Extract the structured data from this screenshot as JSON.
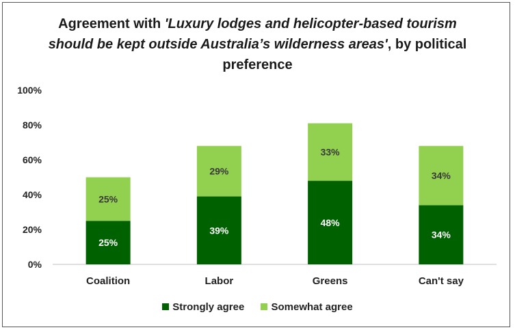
{
  "chart_data": {
    "type": "bar",
    "stacked": true,
    "title_parts": [
      {
        "text": "Agreement with ",
        "italic": false
      },
      {
        "text": "'Luxury lodges and helicopter-based tourism should be kept outside Australia’s wilderness areas'",
        "italic": true
      },
      {
        "text": ", by political preference",
        "italic": false
      }
    ],
    "categories": [
      "Coalition",
      "Labor",
      "Greens",
      "Can't say"
    ],
    "series": [
      {
        "name": "Strongly agree",
        "values": [
          25,
          39,
          48,
          34
        ],
        "color": "#006100",
        "label_color": "#ffffff"
      },
      {
        "name": "Somewhat agree",
        "values": [
          25,
          29,
          33,
          34
        ],
        "color": "#92d050",
        "label_color": "#3a3a3a"
      }
    ],
    "value_suffix": "%",
    "ylim": [
      0,
      100
    ],
    "yticks": [
      "0%",
      "20%",
      "40%",
      "60%",
      "80%",
      "100%"
    ],
    "ytick_values": [
      0,
      20,
      40,
      60,
      80,
      100
    ],
    "grid": false,
    "legend_position": "bottom"
  }
}
